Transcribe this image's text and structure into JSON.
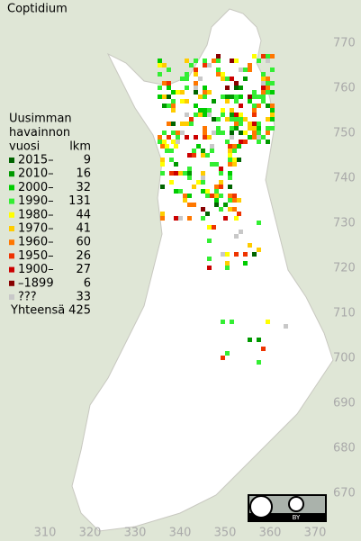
{
  "map": {
    "title": "Coptidium",
    "legend": {
      "heading": [
        "Uusimman",
        "havainnon",
        "vuosi"
      ],
      "count_heading": "lkm",
      "items": [
        {
          "label": "2015–",
          "count": 9,
          "color": "#006400"
        },
        {
          "label": "2010–",
          "count": 16,
          "color": "#009900"
        },
        {
          "label": "2000–",
          "count": 32,
          "color": "#00cc00"
        },
        {
          "label": "1990–",
          "count": 131,
          "color": "#33ee33"
        },
        {
          "label": "1980–",
          "count": 44,
          "color": "#ffff00"
        },
        {
          "label": "1970–",
          "count": 41,
          "color": "#ffcc00"
        },
        {
          "label": "1960–",
          "count": 60,
          "color": "#ff7700"
        },
        {
          "label": "1950–",
          "count": 26,
          "color": "#ee3300"
        },
        {
          "label": "1900–",
          "count": 27,
          "color": "#cc0000"
        },
        {
          "label": "–1899",
          "count": 6,
          "color": "#880000"
        },
        {
          "label": "???",
          "count": 33,
          "color": "#c8c8c8"
        }
      ],
      "total_label": "Yhteensä",
      "total": 425
    },
    "xticks": [
      310,
      320,
      330,
      340,
      350,
      360,
      370
    ],
    "yticks": [
      770,
      760,
      750,
      740,
      730,
      720,
      710,
      700,
      690,
      680,
      670
    ],
    "license": "BY"
  }
}
